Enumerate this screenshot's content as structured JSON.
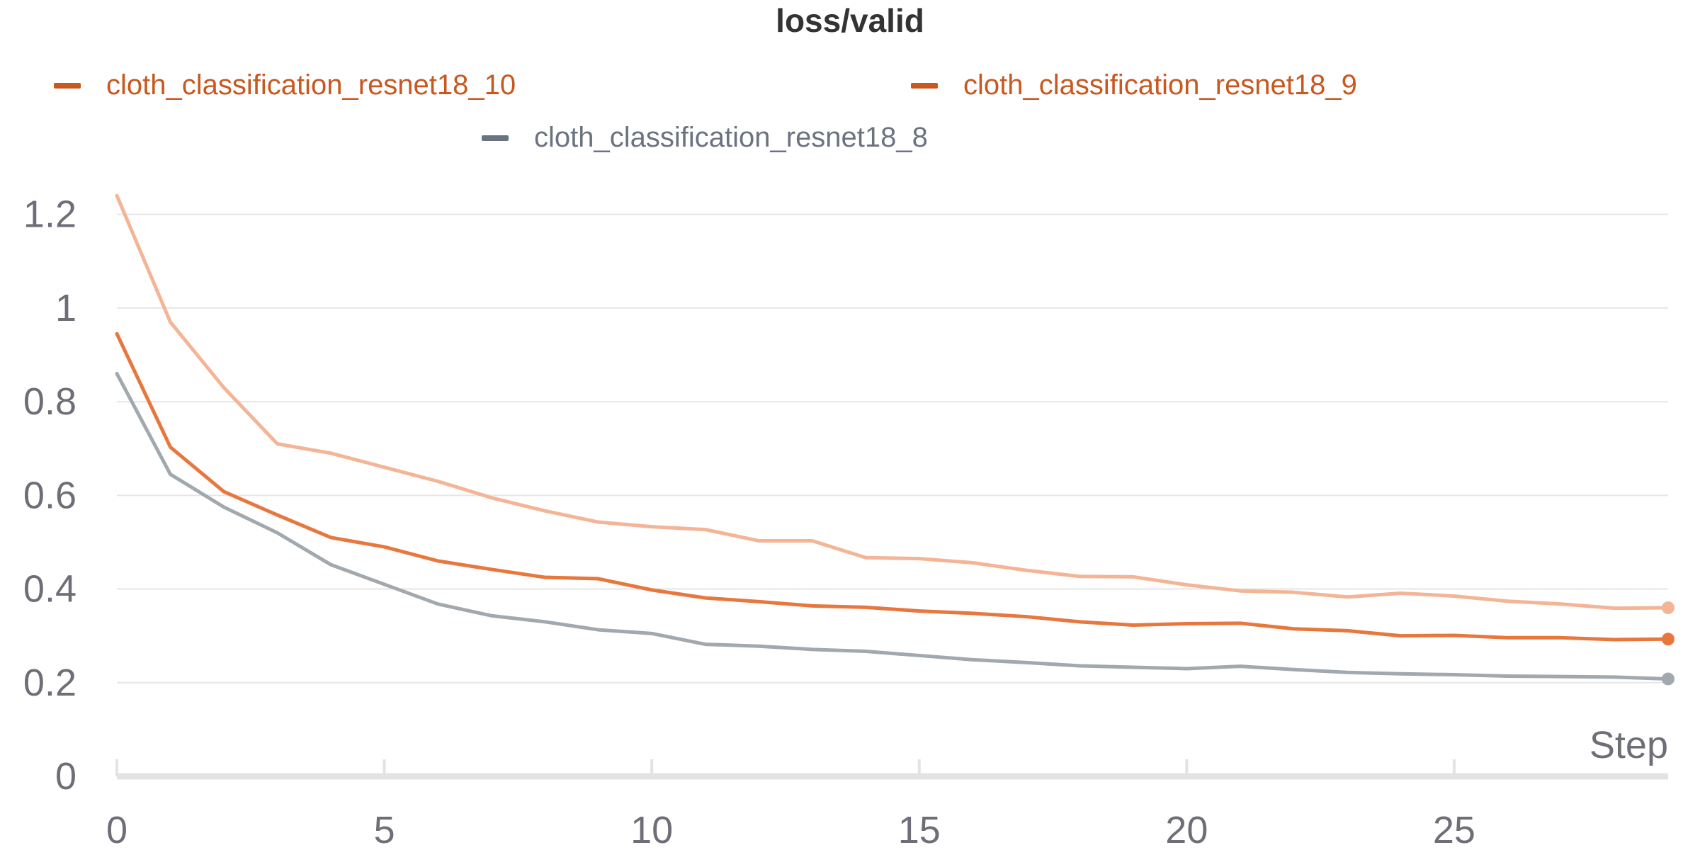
{
  "chart_data": {
    "type": "line",
    "title": "loss/valid",
    "xlabel": "Step",
    "ylabel": "",
    "xlim": [
      0,
      29
    ],
    "ylim": [
      0,
      1.26
    ],
    "x_ticks": [
      "0",
      "5",
      "10",
      "15",
      "20",
      "25"
    ],
    "y_ticks": [
      "0",
      "0.2",
      "0.4",
      "0.6",
      "0.8",
      "1",
      "1.2"
    ],
    "grid": true,
    "legend_position": "top",
    "legend": [
      {
        "name": "cloth_classification_resnet18_10",
        "color": "#c8581f"
      },
      {
        "name": "cloth_classification_resnet18_9",
        "color": "#c8581f"
      },
      {
        "name": "cloth_classification_resnet18_8",
        "color": "#6b7280"
      }
    ],
    "x": [
      0,
      1,
      2,
      3,
      4,
      5,
      6,
      7,
      8,
      9,
      10,
      11,
      12,
      13,
      14,
      15,
      16,
      17,
      18,
      19,
      20,
      21,
      22,
      23,
      24,
      25,
      26,
      27,
      28,
      29
    ],
    "series": [
      {
        "color": "#f3b595",
        "values": [
          1.24,
          0.97,
          0.83,
          0.71,
          0.69,
          0.66,
          0.63,
          0.595,
          0.567,
          0.543,
          0.533,
          0.527,
          0.503,
          0.503,
          0.467,
          0.465,
          0.456,
          0.44,
          0.427,
          0.426,
          0.409,
          0.396,
          0.393,
          0.383,
          0.391,
          0.385,
          0.374,
          0.368,
          0.359,
          0.36
        ]
      },
      {
        "color": "#e8773e",
        "values": [
          0.945,
          0.703,
          0.608,
          0.558,
          0.51,
          0.49,
          0.46,
          0.442,
          0.425,
          0.422,
          0.398,
          0.381,
          0.373,
          0.364,
          0.361,
          0.353,
          0.348,
          0.341,
          0.33,
          0.323,
          0.326,
          0.327,
          0.315,
          0.311,
          0.3,
          0.301,
          0.296,
          0.296,
          0.292,
          0.293
        ]
      },
      {
        "color": "#a2a9ae",
        "values": [
          0.86,
          0.645,
          0.575,
          0.52,
          0.452,
          0.41,
          0.368,
          0.343,
          0.33,
          0.313,
          0.305,
          0.282,
          0.278,
          0.271,
          0.267,
          0.258,
          0.249,
          0.243,
          0.236,
          0.233,
          0.23,
          0.235,
          0.228,
          0.222,
          0.219,
          0.217,
          0.214,
          0.213,
          0.212,
          0.208
        ]
      }
    ]
  }
}
